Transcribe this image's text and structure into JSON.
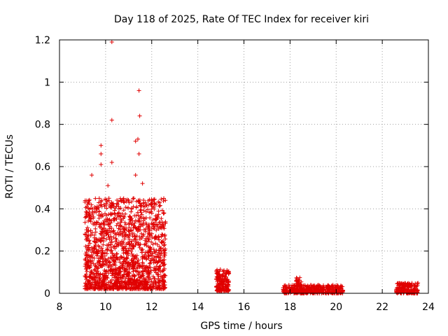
{
  "chart_data": {
    "type": "scatter",
    "title": "Day 118 of 2025, Rate Of TEC Index for receiver kiri",
    "xlabel": "GPS time / hours",
    "ylabel": "ROTI / TECUs",
    "xlim": [
      8,
      24
    ],
    "ylim": [
      0,
      1.2
    ],
    "xticks": [
      "8",
      "10",
      "12",
      "14",
      "16",
      "18",
      "20",
      "22",
      "24"
    ],
    "yticks": [
      "0",
      "0.2",
      "0.4",
      "0.6",
      "0.8",
      "1",
      "1.2"
    ],
    "grid": true,
    "marker": "+",
    "color": "#e00000",
    "series": [
      {
        "name": "ROTI",
        "notable_points": [
          [
            10.27,
            1.19
          ],
          [
            11.45,
            0.96
          ],
          [
            11.48,
            0.84
          ],
          [
            10.27,
            0.82
          ],
          [
            11.3,
            0.72
          ],
          [
            11.4,
            0.73
          ],
          [
            9.8,
            0.7
          ],
          [
            9.8,
            0.66
          ],
          [
            11.45,
            0.66
          ],
          [
            9.8,
            0.61
          ],
          [
            10.27,
            0.62
          ],
          [
            11.3,
            0.56
          ],
          [
            9.4,
            0.56
          ],
          [
            11.6,
            0.52
          ],
          [
            10.1,
            0.51
          ]
        ],
        "clusters": [
          {
            "x_range": [
              9.1,
              12.6
            ],
            "y_range": [
              0.02,
              0.45
            ],
            "count": 1500
          },
          {
            "x_range": [
              14.8,
              15.35
            ],
            "y_range": [
              0.01,
              0.12
            ],
            "count": 170
          },
          {
            "x_range": [
              17.7,
              20.3
            ],
            "y_range": [
              0.0,
              0.04
            ],
            "count": 420
          },
          {
            "x_range": [
              18.25,
              18.5
            ],
            "y_range": [
              0.03,
              0.08
            ],
            "count": 30
          },
          {
            "x_range": [
              22.6,
              23.55
            ],
            "y_range": [
              0.0,
              0.05
            ],
            "count": 180
          }
        ]
      }
    ]
  }
}
